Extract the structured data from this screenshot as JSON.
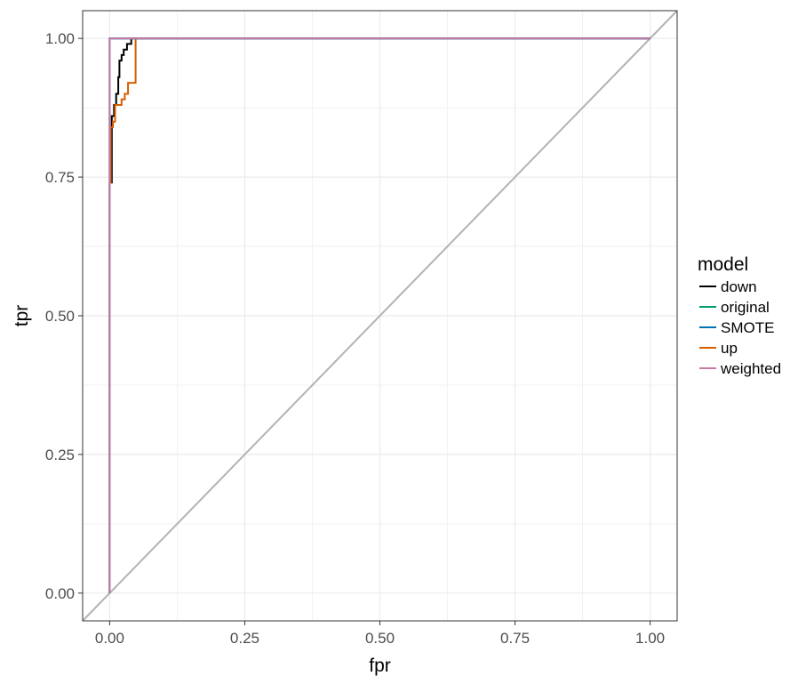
{
  "chart_data": {
    "type": "line",
    "xlabel": "fpr",
    "ylabel": "tpr",
    "xlim": [
      -0.05,
      1.05
    ],
    "ylim": [
      -0.05,
      1.05
    ],
    "x_ticks": [
      "0.00",
      "0.25",
      "0.50",
      "0.75",
      "1.00"
    ],
    "y_ticks": [
      "0.00",
      "0.25",
      "0.50",
      "0.75",
      "1.00"
    ],
    "grid": true,
    "legend": {
      "title": "model",
      "position": "right"
    },
    "reference_line": {
      "x": [
        0,
        1
      ],
      "y": [
        0,
        1
      ],
      "color": "#b3b3b3"
    },
    "series": [
      {
        "name": "down",
        "color": "#000000",
        "x": [
          0,
          0,
          0.004,
          0.004,
          0.008,
          0.008,
          0.012,
          0.012,
          0.016,
          0.016,
          0.018,
          0.018,
          0.022,
          0.022,
          0.026,
          0.026,
          0.028,
          0.028,
          0.032,
          0.032,
          0.036,
          0.036,
          0.04,
          0.04,
          0.044,
          0.044,
          1.0
        ],
        "y": [
          0,
          0.74,
          0.74,
          0.86,
          0.86,
          0.88,
          0.88,
          0.9,
          0.9,
          0.93,
          0.93,
          0.96,
          0.96,
          0.97,
          0.97,
          0.98,
          0.98,
          0.98,
          0.98,
          0.99,
          0.99,
          0.99,
          0.99,
          1.0,
          1.0,
          1.0,
          1.0
        ]
      },
      {
        "name": "original",
        "color": "#009E73",
        "x": [
          0,
          0,
          1.0
        ],
        "y": [
          0,
          1.0,
          1.0
        ]
      },
      {
        "name": "SMOTE",
        "color": "#0072B2",
        "x": [
          0,
          0,
          1.0
        ],
        "y": [
          0,
          1.0,
          1.0
        ]
      },
      {
        "name": "up",
        "color": "#D55E00",
        "x": [
          0,
          0,
          0.002,
          0.002,
          0.006,
          0.006,
          0.01,
          0.01,
          0.016,
          0.016,
          0.022,
          0.022,
          0.028,
          0.028,
          0.034,
          0.034,
          0.048,
          0.048,
          1.0
        ],
        "y": [
          0,
          0.74,
          0.74,
          0.84,
          0.84,
          0.85,
          0.85,
          0.88,
          0.88,
          0.88,
          0.88,
          0.89,
          0.89,
          0.9,
          0.9,
          0.92,
          0.92,
          1.0,
          1.0
        ]
      },
      {
        "name": "weighted",
        "color": "#CC79A7",
        "x": [
          0,
          0,
          1.0
        ],
        "y": [
          0,
          1.0,
          1.0
        ]
      }
    ]
  }
}
